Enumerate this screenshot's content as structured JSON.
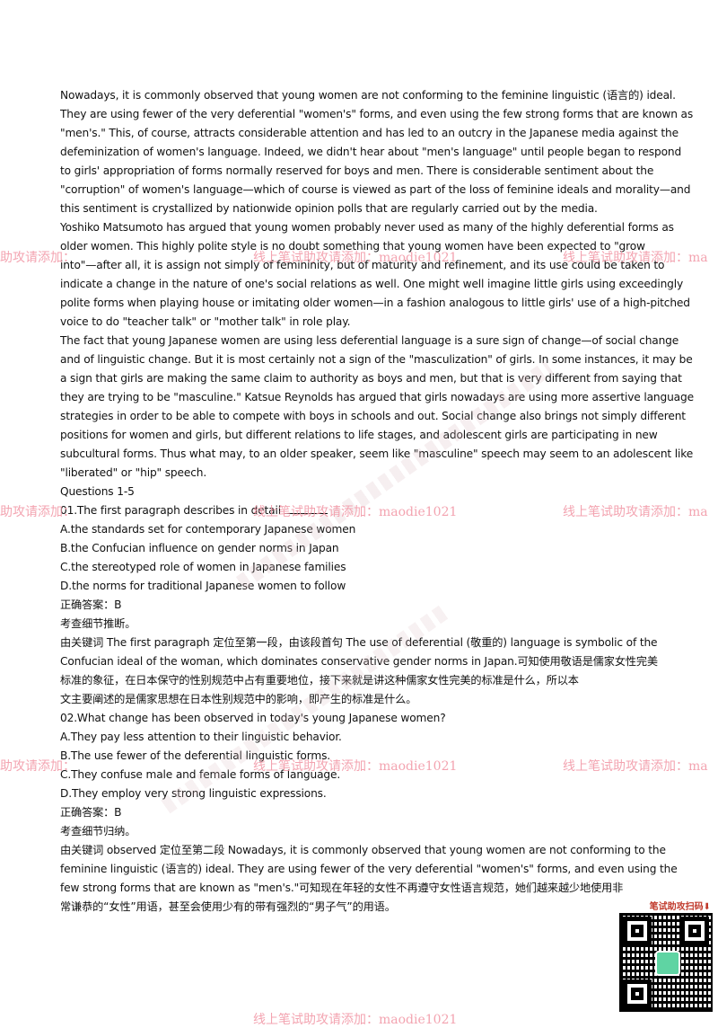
{
  "watermark": {
    "main_text": "线上笔试助攻请添加：maodie1021",
    "left_fragment": "助攻请添加：",
    "right_fragment": "线上笔试助攻请添加：ma",
    "qr_label": "笔试助攻扫码⬇"
  },
  "passage": [
    "Nowadays, it is commonly observed that young women are not conforming to the feminine linguistic (语言的) ideal.",
    "They are using fewer of the very deferential \"women's\" forms, and even using the few strong forms that are known as",
    "\"men's.\" This, of course, attracts considerable attention and has led to an outcry in the Japanese media against the",
    "defeminization of women's language. Indeed, we didn't hear about \"men's language\" until people began to respond",
    "to girls' appropriation of forms normally reserved for boys and men. There is considerable sentiment about the",
    "\"corruption\" of women's language—which of course is viewed as part of the loss of feminine ideals and morality—and",
    "this sentiment is crystallized by nationwide opinion polls that are regularly carried out by the media.",
    "Yoshiko Matsumoto has argued that young women probably never used as many of the highly deferential forms as",
    "older women. This highly polite style is no doubt something that young women have been expected to \"grow",
    "into\"—after all, it is assign not simply of femininity, but of maturity and refinement, and its use could be taken to",
    "indicate a change in the nature of one's social relations as well. One might well imagine little girls using exceedingly",
    "polite forms when playing house or imitating older women—in a fashion analogous to little girls' use of a high-pitched",
    "voice to do \"teacher talk\" or \"mother talk\" in role play.",
    "The fact that young Japanese women are using less deferential language is a sure sign of change—of social change",
    "and of linguistic change. But it is most certainly not a sign of the \"masculization\" of girls. In some instances, it may be",
    "a sign that girls are making the same claim to authority as boys and men, but that is very different from saying that",
    "they are trying to be \"masculine.\" Katsue Reynolds has argued that girls nowadays are using more assertive language",
    "strategies in order to be able to compete with boys in schools and out. Social change also brings not simply different",
    "positions for women and girls, but different relations to life stages, and adolescent girls are participating in new",
    "subcultural forms. Thus what may, to an older speaker, seem like \"masculine\" speech may seem to an adolescent like",
    "\"liberated\" or \"hip\" speech."
  ],
  "section_heading": "Questions 1-5",
  "q1": {
    "stem": "01.The first paragraph describes in detail ",
    "options": [
      "A.the standards set for contemporary Japanese women",
      "B.the Confucian influence on gender norms in Japan",
      "C.the stereotyped role of women in Japanese families",
      "D.the norms for traditional Japanese women to follow"
    ],
    "answer": "正确答案：B",
    "type": "考查细节推断。",
    "explanation": [
      "由关键词 The first paragraph 定位至第一段，由该段首句 The use of deferential (敬重的) language is symbolic of the",
      "Confucian ideal of the woman, which dominates conservative gender norms in Japan.可知使用敬语是儒家女性完美",
      "标准的象征，在日本保守的性别规范中占有重要地位，接下来就是讲这种儒家女性完美的标准是什么，所以本",
      "文主要阐述的是儒家思想在日本性别规范中的影响，即产生的标准是什么。"
    ]
  },
  "q2": {
    "stem": "02.What change has been observed in today's young Japanese women?",
    "options": [
      "A.They pay less attention to their linguistic behavior.",
      "B.The use fewer of the deferential linguistic forms.",
      "C.They confuse male and female forms of language.",
      "D.They employ very strong linguistic expressions."
    ],
    "answer": "正确答案：B",
    "type": "考查细节归纳。",
    "explanation": [
      "由关键词 observed 定位至第二段 Nowadays, it is commonly observed that young women are not conforming to the",
      "feminine linguistic (语言的) ideal. They are using fewer of the very deferential \"women's\" forms, and even using the",
      "few strong forms that are known as \"men's.\"可知现在年轻的女性不再遵守女性语言规范，她们越来越少地使用非",
      "常谦恭的“女性”用语，甚至会使用少有的带有强烈的“男子气”的用语。"
    ]
  }
}
